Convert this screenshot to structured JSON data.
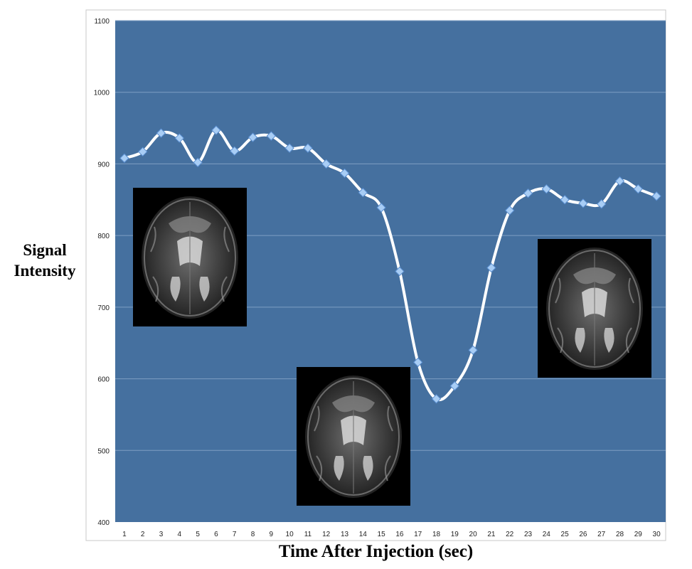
{
  "chart_data": {
    "type": "line",
    "title": "",
    "xlabel": "Time After Injection (sec)",
    "ylabel": "Signal Intensity",
    "x": [
      1,
      2,
      3,
      4,
      5,
      6,
      7,
      8,
      9,
      10,
      11,
      12,
      13,
      14,
      15,
      16,
      17,
      18,
      19,
      20,
      21,
      22,
      23,
      24,
      25,
      26,
      27,
      28,
      29,
      30
    ],
    "series": [
      {
        "values": [
          908,
          917,
          943,
          936,
          902,
          947,
          918,
          937,
          939,
          922,
          922,
          900,
          887,
          860,
          839,
          750,
          623,
          572,
          590,
          640,
          755,
          835,
          859,
          865,
          850,
          845,
          844,
          876,
          865,
          855
        ]
      }
    ],
    "ylim": [
      400,
      1100
    ],
    "yticks": [
      400,
      500,
      600,
      700,
      800,
      900,
      1000,
      1100
    ],
    "grid": true,
    "legend": "none",
    "colors": {
      "plot_background": "#45709f",
      "line": "#ffffff",
      "marker_fill": "#a8cdf5",
      "marker_stroke": "#5b8fd0",
      "gridline": "#7e9ec3"
    },
    "inset_images": [
      {
        "name": "brain-mri-baseline",
        "near_x": 3
      },
      {
        "name": "brain-mri-signal-drop",
        "near_x": 18
      },
      {
        "name": "brain-mri-recovery",
        "near_x": 27
      }
    ]
  }
}
